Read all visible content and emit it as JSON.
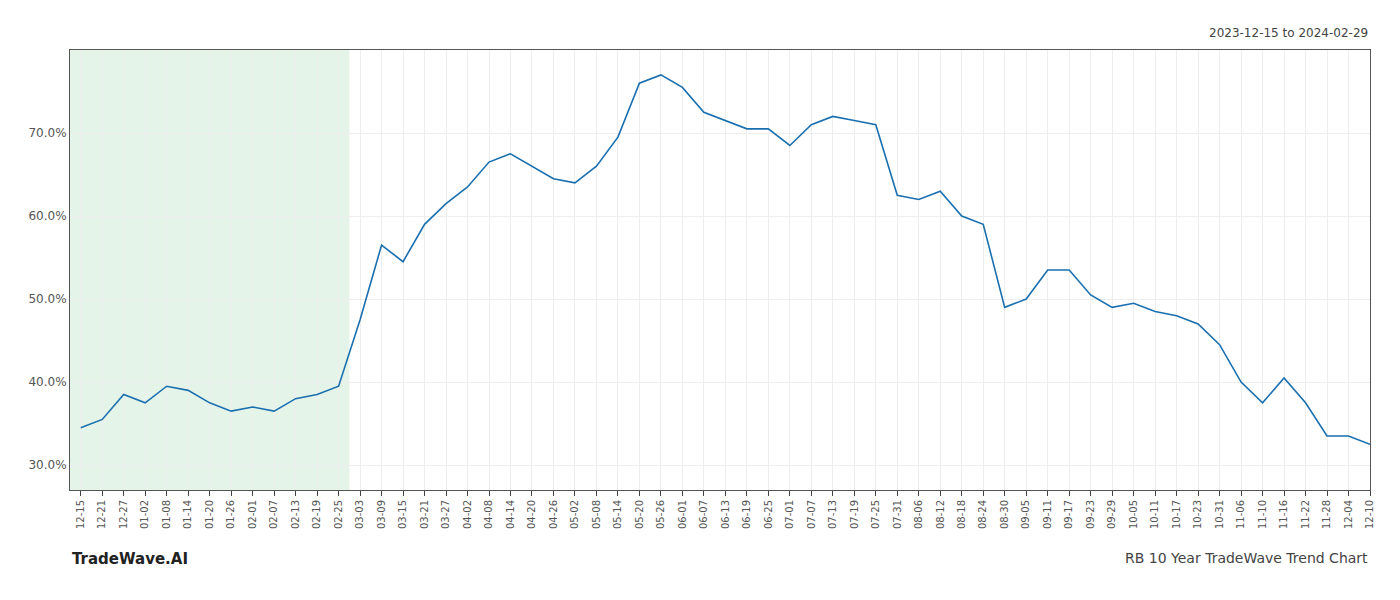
{
  "chart_data": {
    "type": "line",
    "annotations": [
      "2023-12-15 to 2024-02-29",
      "TradeWave.AI",
      "RB 10 Year TradeWave Trend Chart"
    ],
    "categories": [
      "12-15",
      "12-21",
      "12-27",
      "01-02",
      "01-08",
      "01-14",
      "01-20",
      "01-26",
      "02-01",
      "02-07",
      "02-13",
      "02-19",
      "02-25",
      "03-03",
      "03-09",
      "03-15",
      "03-21",
      "03-27",
      "04-02",
      "04-08",
      "04-14",
      "04-20",
      "04-26",
      "05-02",
      "05-08",
      "05-14",
      "05-20",
      "05-26",
      "06-01",
      "06-07",
      "06-13",
      "06-19",
      "06-25",
      "07-01",
      "07-07",
      "07-13",
      "07-19",
      "07-25",
      "07-31",
      "08-06",
      "08-12",
      "08-18",
      "08-24",
      "08-30",
      "09-05",
      "09-11",
      "09-17",
      "09-23",
      "09-29",
      "10-05",
      "10-11",
      "10-17",
      "10-23",
      "10-31",
      "11-06",
      "11-10",
      "11-16",
      "11-22",
      "11-28",
      "12-04",
      "12-10"
    ],
    "values": [
      34.5,
      35.5,
      38.5,
      37.5,
      39.5,
      39.0,
      37.5,
      36.5,
      37.0,
      36.5,
      38.0,
      38.5,
      39.5,
      47.5,
      56.5,
      54.5,
      59.0,
      61.5,
      63.5,
      66.5,
      67.5,
      66.0,
      64.5,
      64.0,
      66.0,
      69.5,
      76.0,
      77.0,
      75.5,
      72.5,
      71.5,
      70.5,
      70.5,
      68.5,
      71.0,
      72.0,
      71.5,
      71.0,
      62.5,
      62.0,
      63.0,
      60.0,
      59.0,
      49.0,
      50.0,
      53.5,
      53.5,
      50.5,
      49.0,
      49.5,
      48.5,
      48.0,
      47.0,
      44.5,
      40.0,
      37.5,
      40.5,
      37.5,
      33.5,
      33.5,
      32.5
    ],
    "color": "#1a6faf",
    "highlight": {
      "from": "12-15",
      "to": "02-25",
      "color": "#d4edda"
    },
    "ylim": [
      27,
      80
    ],
    "yticks": [
      {
        "value": 30.0,
        "label": "30.0%"
      },
      {
        "value": 40.0,
        "label": "40.0%"
      },
      {
        "value": 50.0,
        "label": "50.0%"
      },
      {
        "value": 60.0,
        "label": "60.0%"
      },
      {
        "value": 70.0,
        "label": "70.0%"
      }
    ],
    "grid": true
  }
}
